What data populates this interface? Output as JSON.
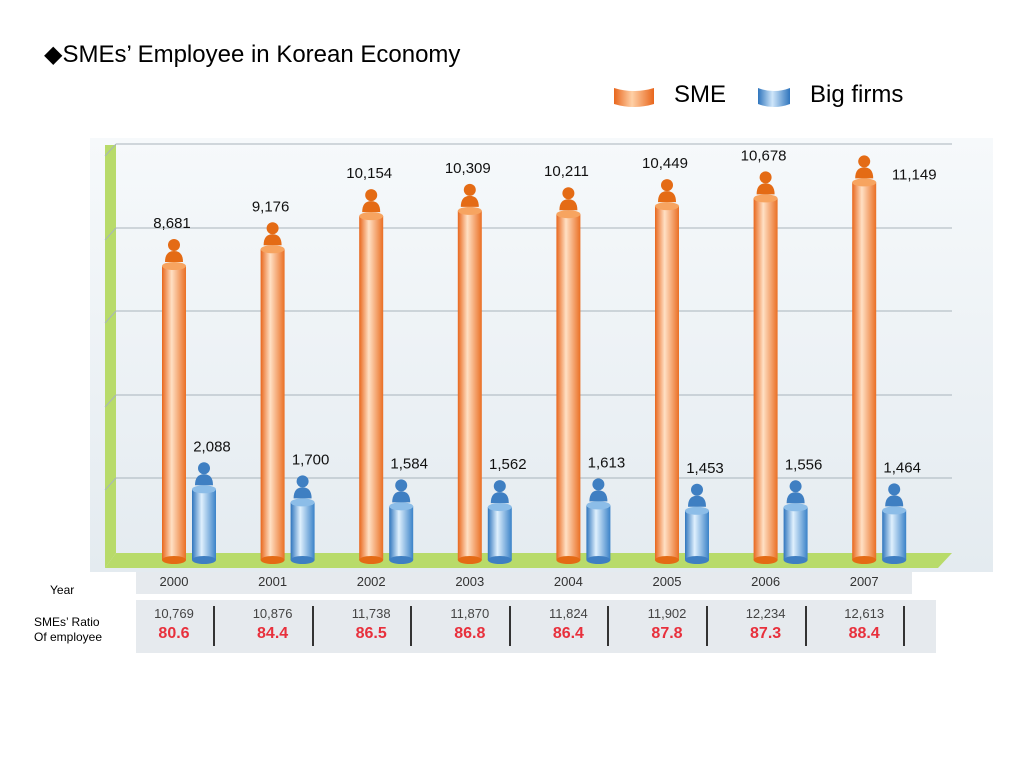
{
  "page": {
    "title": "◆SMEs’ Employee in Korean Economy",
    "legend": {
      "sme_label": "SME",
      "big_label": "Big firms"
    },
    "table": {
      "year_label": "Year",
      "ratio_label_line1": "SMEs’ Ratio",
      "ratio_label_line2": "Of employee"
    }
  },
  "chart_data": {
    "type": "bar",
    "categories": [
      "2000",
      "2001",
      "2002",
      "2003",
      "2004",
      "2005",
      "2006",
      "2007"
    ],
    "series": [
      {
        "name": "SME",
        "values": [
          8681,
          9176,
          10154,
          10309,
          10211,
          10449,
          10678,
          11149
        ],
        "labels": [
          "8,681",
          "9,176",
          "10,154",
          "10,309",
          "10,211",
          "10,449",
          "10,678",
          "11,149"
        ],
        "color": "#f08a3c"
      },
      {
        "name": "Big firms",
        "values": [
          2088,
          1700,
          1584,
          1562,
          1613,
          1453,
          1556,
          1464
        ],
        "labels": [
          "2,088",
          "1,700",
          "1,584",
          "1,562",
          "1,613",
          "1,453",
          "1,556",
          "1,464"
        ],
        "color": "#5a9ad6"
      }
    ],
    "totals": [
      "10,769",
      "10,876",
      "11,738",
      "11,870",
      "11,824",
      "11,902",
      "12,234",
      "12,613"
    ],
    "ratios": [
      "80.6",
      "84.4",
      "86.5",
      "86.8",
      "86.4",
      "87.8",
      "87.3",
      "88.4"
    ],
    "ylim": [
      0,
      12000
    ],
    "grid": true,
    "legend_position": "top-right"
  }
}
